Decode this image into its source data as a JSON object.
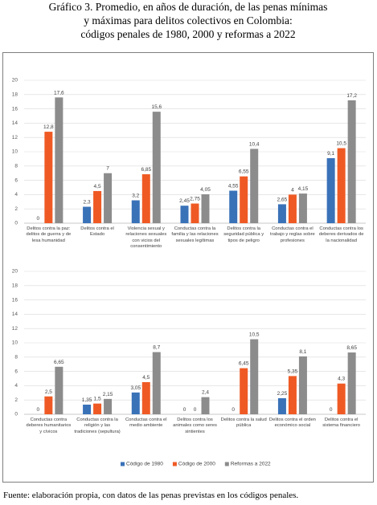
{
  "title": [
    "Gráfico 3. Promedio, en años de duración, de las penas mínimas",
    "y máximas para delitos colectivos en Colombia:",
    "códigos penales de 1980, 2000 y reformas a 2022"
  ],
  "chart_data": [
    {
      "type": "bar",
      "categories": [
        "Delitos contra la paz: delitos de guerra y de lesa humanidad",
        "Delitos contra el Estado",
        "Violencia sexual y relaciones sexuales con vicios del consentimiento",
        "Conductas contra la familia y las relaciones sexuales legítimas",
        "Delitos contra la seguridad pública y tipos de peligro",
        "Conductas contra el trabajo y reglas sobre profesiones",
        "Conductas contra los deberes derivados de la nacionalidad"
      ],
      "series": [
        {
          "color": "#3a72b8",
          "values": [
            0,
            2.3,
            3.2,
            2.45,
            4.55,
            2.65,
            9.1
          ],
          "value_labels": [
            "0",
            "2,3",
            "3,2",
            "2,45",
            "4,55",
            "2,65",
            "9,1"
          ]
        },
        {
          "color": "#ef5a24",
          "values": [
            12.8,
            4.5,
            6.85,
            2.75,
            6.55,
            4,
            10.5
          ],
          "value_labels": [
            "12,8",
            "4,5",
            "6,85",
            "2,75",
            "6,55",
            "4",
            "10,5"
          ]
        },
        {
          "color": "#8c8c8c",
          "values": [
            17.6,
            7,
            15.6,
            4.05,
            10.4,
            4.15,
            17.2
          ],
          "value_labels": [
            "17,6",
            "7",
            "15,6",
            "4,05",
            "10,4",
            "4,15",
            "17,2"
          ]
        }
      ],
      "ylim": [
        0,
        20
      ],
      "yticks": [
        0,
        2,
        4,
        6,
        8,
        10,
        12,
        14,
        16,
        18,
        20
      ],
      "grid": true
    },
    {
      "type": "bar",
      "categories": [
        "Conductas contra deberes humanitarios y cívicos",
        "Conductas contra la religión y las tradiciones (sepultura)",
        "Conductas contra el medio ambiente",
        "Delitos contra los animales como seres sintientes",
        "Delitos contra la salud pública",
        "Delitos contra el orden económico social",
        "Delitos contra el sistema financiero"
      ],
      "series": [
        {
          "name": "Código de 1980",
          "color": "#3a72b8",
          "values": [
            0,
            1.35,
            3.05,
            0,
            0,
            2.25,
            0
          ],
          "value_labels": [
            "0",
            "1,35",
            "3,05",
            "0",
            "0",
            "2,25",
            "0"
          ]
        },
        {
          "name": "Código de 2000",
          "color": "#ef5a24",
          "values": [
            2.5,
            1.5,
            4.5,
            0,
            6.45,
            5.35,
            4.3
          ],
          "value_labels": [
            "2,5",
            "1,5",
            "4,5",
            "0",
            "6,45",
            "5,35",
            "4,3"
          ]
        },
        {
          "name": "Reformas a 2022",
          "color": "#8c8c8c",
          "values": [
            6.65,
            2.15,
            8.7,
            2.4,
            10.5,
            8.1,
            8.65
          ],
          "value_labels": [
            "6,65",
            "2,15",
            "8,7",
            "2,4",
            "10,5",
            "8,1",
            "8,65"
          ]
        }
      ],
      "ylim": [
        0,
        20
      ],
      "yticks": [
        0,
        2,
        4,
        6,
        8,
        10,
        12,
        14,
        16,
        18,
        20
      ],
      "grid": true
    }
  ],
  "source": "Fuente: elaboración propia, con datos de las penas previstas en los códigos penales."
}
